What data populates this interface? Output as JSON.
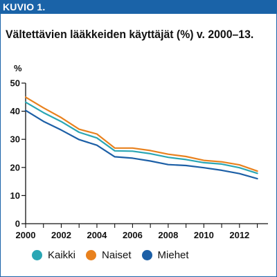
{
  "header": {
    "label": "KUVIO 1."
  },
  "title": "Vältettävien lääkkeiden käyttäjät (%) v. 2000–13.",
  "colors": {
    "brand": "#1a63a8",
    "kaikki": "#2aa6b4",
    "naiset": "#e8811e",
    "miehet": "#1c5fa6"
  },
  "chart_data": {
    "type": "line",
    "title": "Vältettävien lääkkeiden käyttäjät (%) v. 2000–13.",
    "ylabel": "%",
    "xlabel": "",
    "x": [
      2000,
      2001,
      2002,
      2003,
      2004,
      2005,
      2006,
      2007,
      2008,
      2009,
      2010,
      2011,
      2012,
      2013
    ],
    "xlim": [
      2000,
      2013.6
    ],
    "ylim": [
      0,
      50
    ],
    "x_ticks": [
      "2000",
      "2002",
      "2004",
      "2006",
      "2008",
      "2010",
      "2012"
    ],
    "y_ticks": [
      "0",
      "10",
      "20",
      "30",
      "40",
      "50"
    ],
    "grid": false,
    "legend_position": "bottom",
    "series": [
      {
        "name": "Kaikki",
        "color": "#2aa6b4",
        "values": [
          43.2,
          39.5,
          36.3,
          32.5,
          30.5,
          25.9,
          25.8,
          24.9,
          23.6,
          22.8,
          21.7,
          21.2,
          19.9,
          17.9
        ]
      },
      {
        "name": "Naiset",
        "color": "#e8811e",
        "values": [
          45.0,
          41.2,
          37.7,
          33.6,
          31.9,
          26.9,
          26.9,
          26.0,
          24.7,
          23.9,
          22.5,
          22.0,
          20.9,
          18.7
        ]
      },
      {
        "name": "Miehet",
        "color": "#1c5fa6",
        "values": [
          40.3,
          36.4,
          33.3,
          29.9,
          27.9,
          23.8,
          23.3,
          22.3,
          21.0,
          20.7,
          19.9,
          19.0,
          17.8,
          16.0
        ]
      }
    ]
  }
}
